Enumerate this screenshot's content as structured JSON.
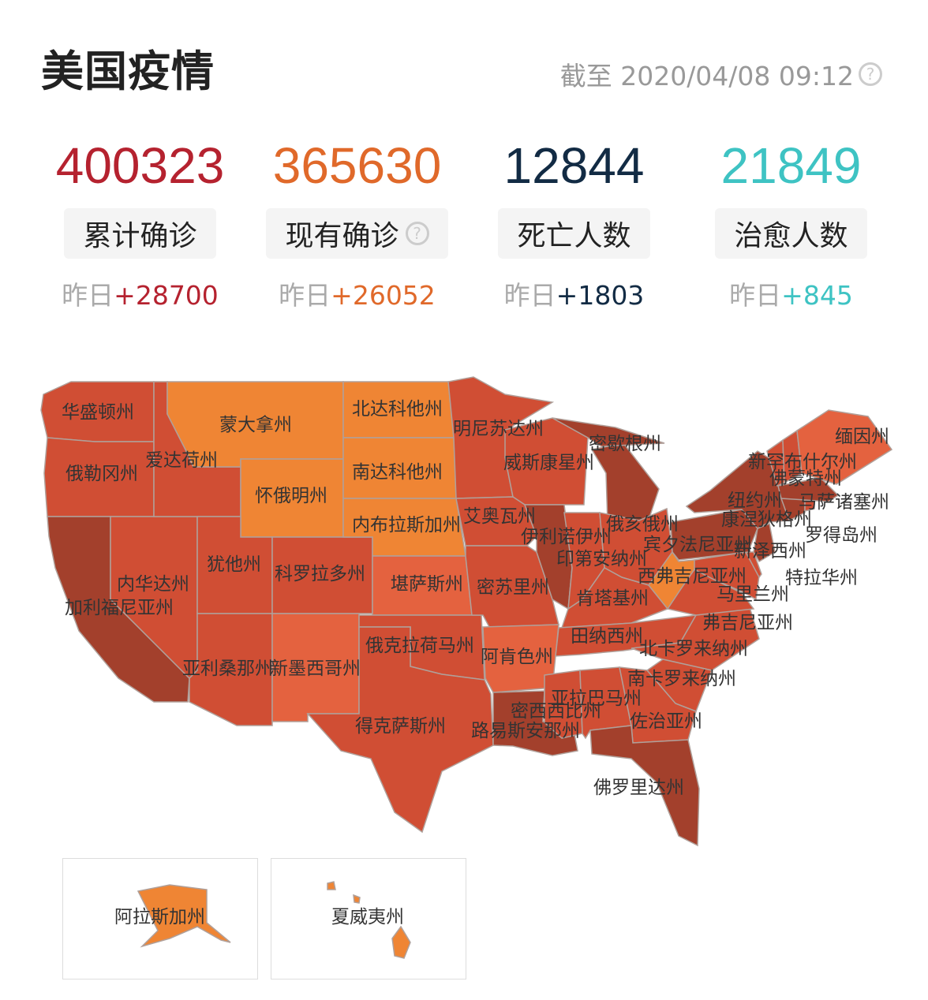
{
  "header": {
    "title": "美国疫情",
    "timestamp": "截至 2020/04/08 09:12",
    "help_icon": "question-circle-icon"
  },
  "stats": [
    {
      "value": "400323",
      "label": "累计确诊",
      "yesterday_prefix": "昨日",
      "yesterday_delta": "+28700",
      "color": "#b5222f",
      "help": false
    },
    {
      "value": "365630",
      "label": "现有确诊",
      "yesterday_prefix": "昨日",
      "yesterday_delta": "+26052",
      "color": "#e0692a",
      "help": true
    },
    {
      "value": "12844",
      "label": "死亡人数",
      "yesterday_prefix": "昨日",
      "yesterday_delta": "+1803",
      "color": "#122b44",
      "help": false
    },
    {
      "value": "21849",
      "label": "治愈人数",
      "yesterday_prefix": "昨日",
      "yesterday_delta": "+845",
      "color": "#3ec3c3",
      "help": false
    }
  ],
  "map": {
    "level_colors": {
      "low": "#ef8534",
      "mid_light": "#e4623f",
      "mid": "#d04e34",
      "high": "#a3402c"
    },
    "states": [
      {
        "id": "WA",
        "name": "华盛顿州",
        "level": "mid"
      },
      {
        "id": "OR",
        "name": "俄勒冈州",
        "level": "mid"
      },
      {
        "id": "CA",
        "name": "加利福尼亚州",
        "level": "high"
      },
      {
        "id": "NV",
        "name": "内华达州",
        "level": "mid"
      },
      {
        "id": "ID",
        "name": "爱达荷州",
        "level": "mid"
      },
      {
        "id": "MT",
        "name": "蒙大拿州",
        "level": "low"
      },
      {
        "id": "WY",
        "name": "怀俄明州",
        "level": "low"
      },
      {
        "id": "UT",
        "name": "犹他州",
        "level": "mid"
      },
      {
        "id": "CO",
        "name": "科罗拉多州",
        "level": "mid"
      },
      {
        "id": "AZ",
        "name": "亚利桑那州",
        "level": "mid"
      },
      {
        "id": "NM",
        "name": "新墨西哥州",
        "level": "mid_light"
      },
      {
        "id": "ND",
        "name": "北达科他州",
        "level": "low"
      },
      {
        "id": "SD",
        "name": "南达科他州",
        "level": "low"
      },
      {
        "id": "NE",
        "name": "内布拉斯加州",
        "level": "low"
      },
      {
        "id": "KS",
        "name": "堪萨斯州",
        "level": "mid_light"
      },
      {
        "id": "OK",
        "name": "俄克拉荷马州",
        "level": "mid"
      },
      {
        "id": "TX",
        "name": "得克萨斯州",
        "level": "mid"
      },
      {
        "id": "MN",
        "name": "明尼苏达州",
        "level": "mid"
      },
      {
        "id": "WI",
        "name": "威斯康星州",
        "level": "mid"
      },
      {
        "id": "IA",
        "name": "艾奥瓦州",
        "level": "mid"
      },
      {
        "id": "MO",
        "name": "密苏里州",
        "level": "mid"
      },
      {
        "id": "AR",
        "name": "阿肯色州",
        "level": "mid_light"
      },
      {
        "id": "LA",
        "name": "路易斯安那州",
        "level": "high"
      },
      {
        "id": "MS",
        "name": "密西西比州",
        "level": "mid"
      },
      {
        "id": "AL",
        "name": "亚拉巴马州",
        "level": "mid"
      },
      {
        "id": "IL",
        "name": "伊利诺伊州",
        "level": "high"
      },
      {
        "id": "IN",
        "name": "印第安纳州",
        "level": "mid"
      },
      {
        "id": "MI",
        "name": "密歇根州",
        "level": "high"
      },
      {
        "id": "OH",
        "name": "俄亥俄州",
        "level": "mid"
      },
      {
        "id": "KY",
        "name": "肯塔基州",
        "level": "mid"
      },
      {
        "id": "TN",
        "name": "田纳西州",
        "level": "mid"
      },
      {
        "id": "NC",
        "name": "北卡罗来纳州",
        "level": "mid"
      },
      {
        "id": "SC",
        "name": "南卡罗来纳州",
        "level": "mid"
      },
      {
        "id": "GA",
        "name": "佐治亚州",
        "level": "mid"
      },
      {
        "id": "FL",
        "name": "佛罗里达州",
        "level": "high"
      },
      {
        "id": "VA",
        "name": "弗吉尼亚州",
        "level": "mid"
      },
      {
        "id": "WV",
        "name": "西弗吉尼亚州",
        "level": "low"
      },
      {
        "id": "MD",
        "name": "马里兰州",
        "level": "mid"
      },
      {
        "id": "DE",
        "name": "特拉华州",
        "level": "mid"
      },
      {
        "id": "PA",
        "name": "宾夕法尼亚州",
        "level": "high"
      },
      {
        "id": "NJ",
        "name": "新泽西州",
        "level": "high"
      },
      {
        "id": "NY",
        "name": "纽约州",
        "level": "high"
      },
      {
        "id": "CT",
        "name": "康涅狄格州",
        "level": "high"
      },
      {
        "id": "RI",
        "name": "罗得岛州",
        "level": "mid"
      },
      {
        "id": "MA",
        "name": "马萨诸塞州",
        "level": "high"
      },
      {
        "id": "VT",
        "name": "佛蒙特州",
        "level": "mid"
      },
      {
        "id": "NH",
        "name": "新罕布什尔州",
        "level": "mid"
      },
      {
        "id": "ME",
        "name": "缅因州",
        "level": "mid_light"
      },
      {
        "id": "AK",
        "name": "阿拉斯加州",
        "level": "low"
      },
      {
        "id": "HI",
        "name": "夏威夷州",
        "level": "low"
      }
    ]
  }
}
